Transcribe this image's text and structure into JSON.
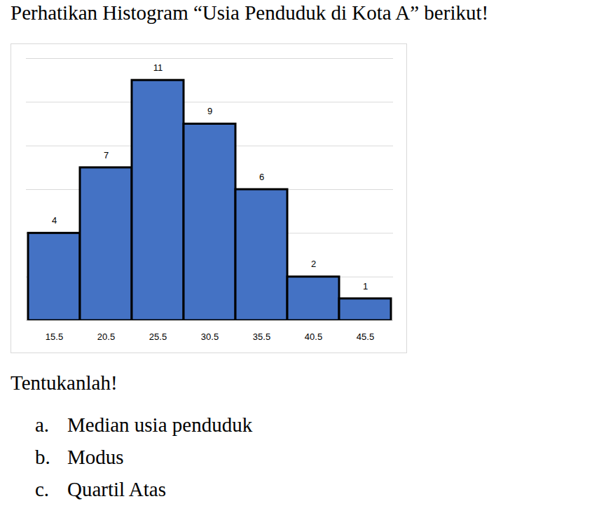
{
  "chart_data": {
    "type": "bar",
    "categories": [
      "15.5",
      "20.5",
      "25.5",
      "30.5",
      "35.5",
      "40.5",
      "45.5"
    ],
    "values": [
      4,
      7,
      11,
      9,
      6,
      2,
      1
    ],
    "color": "#4472c4",
    "ylim": [
      0,
      12
    ],
    "yticks": [
      0,
      2,
      4,
      6,
      8,
      10,
      12
    ],
    "grid": true,
    "data_labels": true,
    "tick_labels": "x"
  },
  "document": {
    "intro": "Perhatikan Histogram “Usia Penduduk di Kota A” berikut!",
    "instruction": "Tentukanlah!",
    "items": [
      {
        "label": "a.",
        "text": "Median usia penduduk"
      },
      {
        "label": "b.",
        "text": "Modus"
      },
      {
        "label": "c.",
        "text": "Quartil Atas"
      }
    ]
  }
}
